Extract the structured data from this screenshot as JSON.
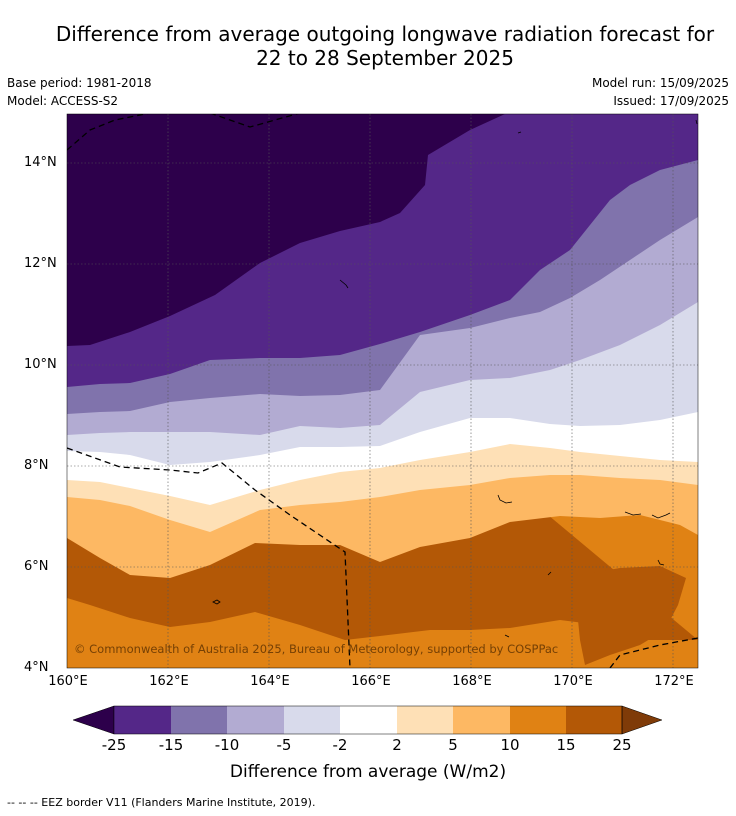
{
  "title_line1": "Difference from average outgoing longwave radiation forecast for",
  "title_line2": "22 to 28 September 2025",
  "base_period": "Base period: 1981-2018",
  "model": "Model: ACCESS-S2",
  "model_run": "Model run: 15/09/2025",
  "issued": "Issued: 17/09/2025",
  "copyright": "© Commonwealth of Australia 2025, Bureau of Meteorology, supported by COSPPac",
  "lat_labels": [
    "14°N",
    "12°N",
    "10°N",
    "8°N",
    "6°N",
    "4°N"
  ],
  "lon_labels": [
    "160°E",
    "162°E",
    "164°E",
    "166°E",
    "168°E",
    "170°E",
    "172°E"
  ],
  "colorbar": {
    "title": "Difference from average (W/m2)",
    "ticks": [
      "-25",
      "-15",
      "-10",
      "-5",
      "-2",
      "2",
      "5",
      "10",
      "15",
      "25"
    ],
    "colors": [
      "#2d004b",
      "#542788",
      "#8073ac",
      "#b2abd2",
      "#d8daeb",
      "#ffffff",
      "#fee0b6",
      "#fdb863",
      "#e08214",
      "#b35806",
      "#7f3b08"
    ]
  },
  "legend_footer": "--  --  -- EEZ border V11 (Flanders Marine Institute, 2019)."
}
